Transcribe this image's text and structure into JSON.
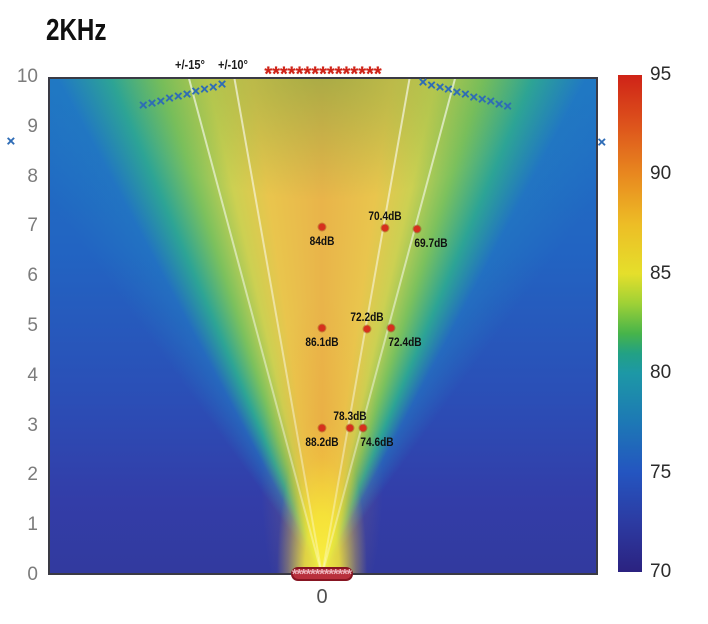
{
  "title": "2KHz",
  "annotations": {
    "angle_15": "+/-15°",
    "angle_10": "+/-10°"
  },
  "axes": {
    "y_ticks": [
      "10",
      "9",
      "8",
      "7",
      "6",
      "5",
      "4",
      "3",
      "2",
      "1",
      "0"
    ],
    "x_ticks": [
      "0"
    ]
  },
  "colorbar": {
    "ticks": [
      "95",
      "90",
      "85",
      "80",
      "75",
      "70"
    ]
  },
  "chart_data": {
    "type": "heatmap",
    "title": "2KHz",
    "x_range": [
      -5.5,
      5.5
    ],
    "y_range": [
      0,
      10
    ],
    "color_range_dB": [
      70,
      95
    ],
    "colorbar_ticks": [
      95,
      90,
      85,
      80,
      75,
      70
    ],
    "beam_lines_deg": [
      -15,
      -10,
      10,
      15
    ],
    "beam_line_labels": [
      "+/-15°",
      "+/-10°"
    ],
    "spl_points": [
      {
        "x": 0,
        "y": 7,
        "label": "84dB",
        "label_pos": "below"
      },
      {
        "x": 1.27,
        "y": 6.97,
        "label": "70.4dB",
        "label_pos": "above"
      },
      {
        "x": 1.9,
        "y": 6.95,
        "label": "69.7dB",
        "label_pos": "below-right"
      },
      {
        "x": 0,
        "y": 4.97,
        "label": "86.1dB",
        "label_pos": "below"
      },
      {
        "x": 0.9,
        "y": 4.95,
        "label": "72.2dB",
        "label_pos": "above"
      },
      {
        "x": 1.39,
        "y": 4.96,
        "label": "72.4dB",
        "label_pos": "below-right"
      },
      {
        "x": 0,
        "y": 2.95,
        "label": "88.2dB",
        "label_pos": "below"
      },
      {
        "x": 0.56,
        "y": 2.95,
        "label": "78.3dB",
        "label_pos": "above"
      },
      {
        "x": 0.82,
        "y": 2.95,
        "label": "74.6dB",
        "label_pos": "below-right"
      }
    ],
    "marker_rows": [
      {
        "name": "top-asterisk-row",
        "marker": "asterisk",
        "x_start": -1.08,
        "x_end": 1.12,
        "y_start": 10,
        "y_end": 10,
        "count": 15
      },
      {
        "name": "left-x-chain",
        "marker": "x",
        "x_start": -3.59,
        "x_end": -2.01,
        "y_start": 9.42,
        "y_end": 9.84,
        "count": 10
      },
      {
        "name": "right-x-chain",
        "marker": "x",
        "x_start": 2.03,
        "x_end": 3.73,
        "y_start": 9.88,
        "y_end": 9.4,
        "count": 11
      },
      {
        "name": "far-left-x",
        "marker": "x",
        "x_start": -6.25,
        "x_end": -6.25,
        "y_start": 8.7,
        "y_end": 8.7,
        "count": 1
      },
      {
        "name": "far-right-x",
        "marker": "x",
        "x_start": 5.62,
        "x_end": 5.62,
        "y_start": 8.68,
        "y_end": 8.68,
        "count": 1
      },
      {
        "name": "bottom-asterisk-row",
        "marker": "asterisk-small",
        "x_start": -0.55,
        "x_end": 0.55,
        "y_start": 0,
        "y_end": 0,
        "count": 13
      }
    ],
    "colors": {
      "marker_red": "#cf2318",
      "marker_blue": "#2e6cb6",
      "dot_red": "#d6301d",
      "colorbar_top": "#cf2317",
      "colorbar_bottom": "#2b2280"
    }
  }
}
